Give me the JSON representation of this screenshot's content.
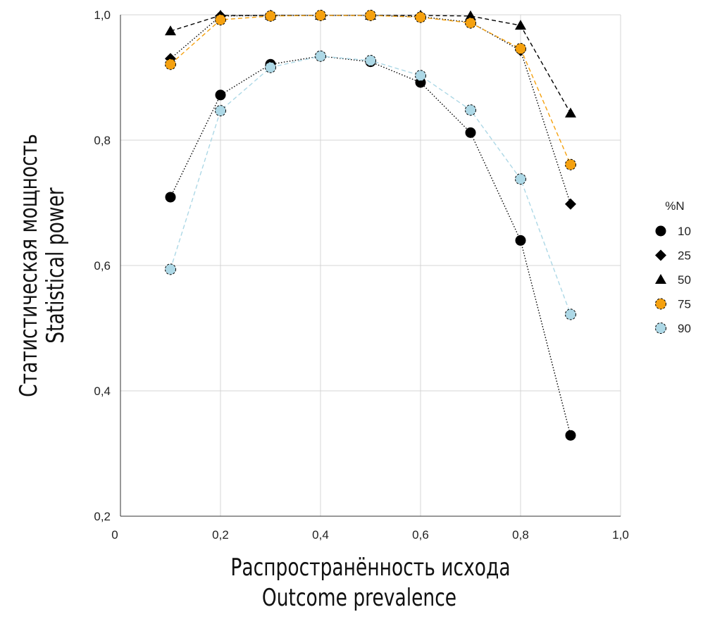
{
  "chart_data": {
    "type": "line",
    "xlabel": [
      "Распространённость исхода",
      "Outcome prevalence"
    ],
    "ylabel": [
      "Статистическая мощность",
      "Statistical power"
    ],
    "xlim": [
      0,
      1.0
    ],
    "ylim": [
      0.2,
      1.0
    ],
    "x_ticks": [
      "0",
      "0,2",
      "0,4",
      "0,6",
      "0,8",
      "1,0"
    ],
    "x_tick_values": [
      0,
      0.2,
      0.4,
      0.6,
      0.8,
      1.0
    ],
    "y_ticks": [
      "0,2",
      "0,4",
      "0,6",
      "0,8",
      "1,0"
    ],
    "y_tick_values": [
      0.2,
      0.4,
      0.6,
      0.8,
      1.0
    ],
    "grid": true,
    "legend_title": "%N",
    "legend_position": "right",
    "x": [
      0.1,
      0.2,
      0.3,
      0.4,
      0.5,
      0.6,
      0.7,
      0.8,
      0.9
    ],
    "series": [
      {
        "name": "10",
        "marker": "circle",
        "color": "#000000",
        "line": "dotted",
        "line_color": "#000000",
        "values": [
          0.709,
          0.872,
          0.921,
          0.934,
          0.925,
          0.892,
          0.812,
          0.64,
          0.329
        ]
      },
      {
        "name": "25",
        "marker": "diamond",
        "color": "#000000",
        "line": "dotted",
        "line_color": "#000000",
        "values": [
          0.93,
          0.998,
          0.999,
          0.999,
          0.999,
          0.997,
          0.988,
          0.943,
          0.698
        ]
      },
      {
        "name": "50",
        "marker": "triangle",
        "color": "#000000",
        "line": "dashed",
        "line_color": "#000000",
        "values": [
          0.974,
          0.999,
          0.999,
          0.999,
          0.999,
          0.999,
          0.998,
          0.983,
          0.843
        ]
      },
      {
        "name": "75",
        "marker": "circle",
        "color": "#F5A10F",
        "line": "dashed",
        "line_color": "#F5A10F",
        "values": [
          0.921,
          0.992,
          0.998,
          0.999,
          0.999,
          0.996,
          0.987,
          0.946,
          0.761
        ]
      },
      {
        "name": "90",
        "marker": "circle",
        "color": "#ADD8E6",
        "line": "dashed",
        "line_color": "#ADD8E6",
        "values": [
          0.594,
          0.847,
          0.916,
          0.934,
          0.927,
          0.903,
          0.848,
          0.738,
          0.522
        ]
      }
    ]
  }
}
